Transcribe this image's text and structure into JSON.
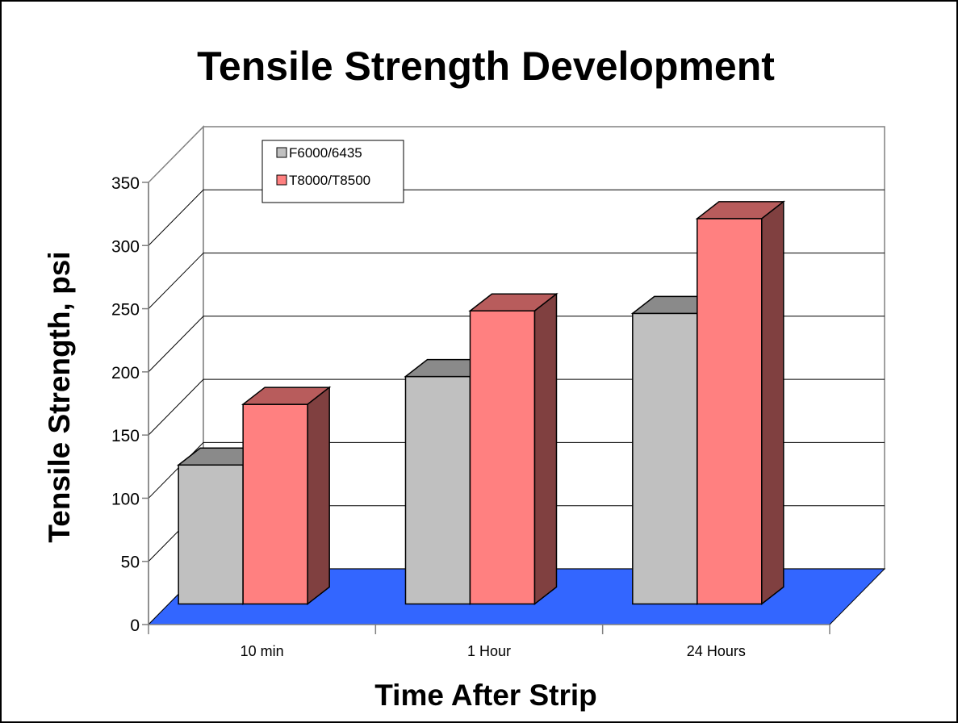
{
  "chart_data": {
    "type": "bar",
    "title": "Tensile Strength Development",
    "xlabel": "Time After Strip",
    "ylabel": "Tensile Strength, psi",
    "categories": [
      "10 min",
      "1 Hour",
      "24 Hours"
    ],
    "series": [
      {
        "name": "F6000/6435",
        "values": [
          110,
          180,
          230
        ],
        "color": "#c0c0c0"
      },
      {
        "name": "T8000/T8500",
        "values": [
          158,
          232,
          305
        ],
        "color": "#ff8080"
      }
    ],
    "ylim": [
      0,
      350
    ],
    "yticks": [
      "0",
      "50",
      "100",
      "150",
      "200",
      "250",
      "300",
      "350"
    ],
    "grid": true,
    "legend": "top-left",
    "floor_color": "#3366ff"
  }
}
